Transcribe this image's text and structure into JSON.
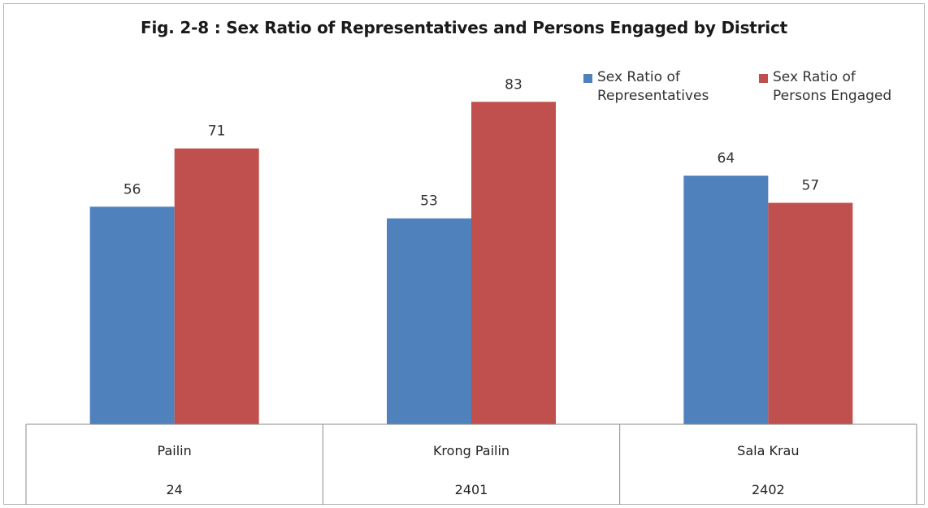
{
  "chart_data": {
    "type": "bar",
    "title": "Fig. 2-8 : Sex Ratio of Representatives and Persons Engaged by District",
    "categories": [
      {
        "name": "Pailin",
        "code": "24"
      },
      {
        "name": "Krong Pailin",
        "code": "2401"
      },
      {
        "name": "Sala Krau",
        "code": "2402"
      }
    ],
    "series": [
      {
        "name": "Sex Ratio of Representatives",
        "legend_lines": [
          "Sex Ratio of",
          "Representatives"
        ],
        "color": "#4f81bd",
        "values": [
          56,
          53,
          64
        ]
      },
      {
        "name": "Sex Ratio of Persons Engaged",
        "legend_lines": [
          "Sex Ratio of",
          "Persons Engaged"
        ],
        "color": "#c0504d",
        "values": [
          71,
          83,
          57
        ]
      }
    ],
    "ylim": [
      0,
      100
    ],
    "grid": false,
    "legend_position": "top-right",
    "data_labels": true
  }
}
